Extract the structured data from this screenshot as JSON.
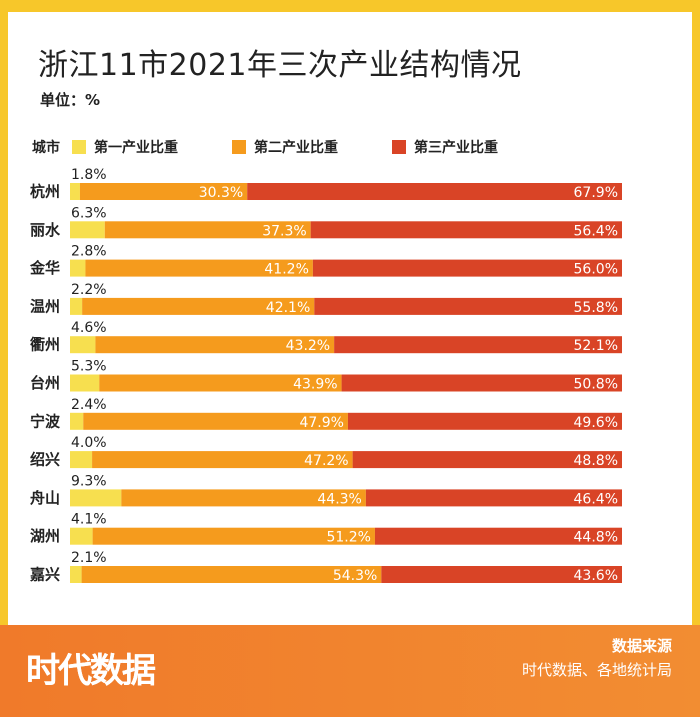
{
  "title": "浙江11市2021年三次产业结构情况",
  "unit": "单位：%",
  "legend": {
    "header": "城市",
    "items": [
      "第一产业比重",
      "第二产业比重",
      "第三产业比重"
    ]
  },
  "colors": {
    "primary": "#f7df4f",
    "secondary": "#f59b1d",
    "tertiary": "#d94426",
    "frame": "#f7c72a",
    "footer": "#f28332"
  },
  "chart_data": {
    "type": "bar",
    "stacked": true,
    "orientation": "horizontal",
    "title": "浙江11市2021年三次产业结构情况",
    "categories": [
      "杭州",
      "丽水",
      "金华",
      "温州",
      "衢州",
      "台州",
      "宁波",
      "绍兴",
      "舟山",
      "湖州",
      "嘉兴"
    ],
    "series": [
      {
        "name": "第一产业比重",
        "values": [
          1.8,
          6.3,
          2.8,
          2.2,
          4.6,
          5.3,
          2.4,
          4.0,
          9.3,
          4.1,
          2.1
        ]
      },
      {
        "name": "第二产业比重",
        "values": [
          30.3,
          37.3,
          41.2,
          42.1,
          43.2,
          43.9,
          47.9,
          47.2,
          44.3,
          51.2,
          54.3
        ]
      },
      {
        "name": "第三产业比重",
        "values": [
          67.9,
          56.4,
          56.0,
          55.8,
          52.1,
          50.8,
          49.6,
          48.8,
          46.4,
          44.8,
          43.6
        ]
      }
    ],
    "labels": [
      [
        "1.8%",
        "30.3%",
        "67.9%"
      ],
      [
        "6.3%",
        "37.3%",
        "56.4%"
      ],
      [
        "2.8%",
        "41.2%",
        "56.0%"
      ],
      [
        "2.2%",
        "42.1%",
        "55.8%"
      ],
      [
        "4.6%",
        "43.2%",
        "52.1%"
      ],
      [
        "5.3%",
        "43.9%",
        "50.8%"
      ],
      [
        "2.4%",
        "47.9%",
        "49.6%"
      ],
      [
        "4.0%",
        "47.2%",
        "48.8%"
      ],
      [
        "9.3%",
        "44.3%",
        "46.4%"
      ],
      [
        "4.1%",
        "51.2%",
        "44.8%"
      ],
      [
        "2.1%",
        "54.3%",
        "43.6%"
      ]
    ],
    "xlim": [
      0,
      100
    ],
    "unit": "%"
  },
  "footer": {
    "logo": "时代数据",
    "source_label": "数据来源",
    "source_value": "时代数据、各地统计局"
  }
}
